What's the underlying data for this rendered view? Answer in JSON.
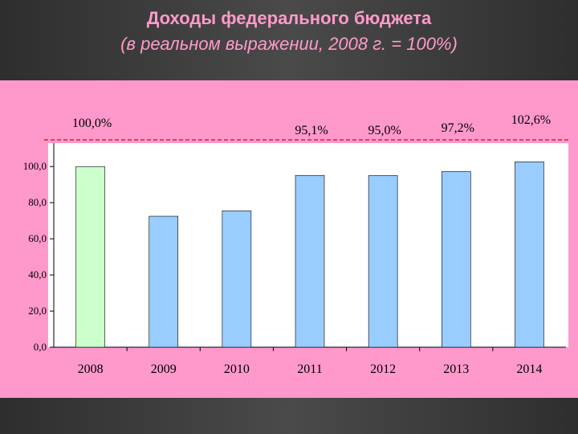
{
  "chart_data": {
    "type": "bar",
    "title": "Доходы федерального бюджета",
    "subtitle": "(в реальном выражении, 2008 г. = 100%)",
    "categories": [
      "2008",
      "2009",
      "2010",
      "2011",
      "2012",
      "2013",
      "2014"
    ],
    "values": [
      100,
      72.5,
      75.5,
      95.1,
      95.0,
      97.2,
      102.6
    ],
    "value_labels": [
      "100,0%",
      null,
      null,
      "95,1%",
      "95,0%",
      "97,2%",
      "102,6%"
    ],
    "colors": [
      "#ccffcc",
      "#99ccff",
      "#99ccff",
      "#99ccff",
      "#99ccff",
      "#99ccff",
      "#99ccff"
    ],
    "ylim": [
      0,
      113
    ],
    "yticks": [
      {
        "value": 0,
        "label": "0,0"
      },
      {
        "value": 20,
        "label": "20,0"
      },
      {
        "value": 40,
        "label": "40,0"
      },
      {
        "value": 60,
        "label": "60,0"
      },
      {
        "value": 80,
        "label": "80,0"
      },
      {
        "value": 100,
        "label": "100,0"
      }
    ]
  }
}
